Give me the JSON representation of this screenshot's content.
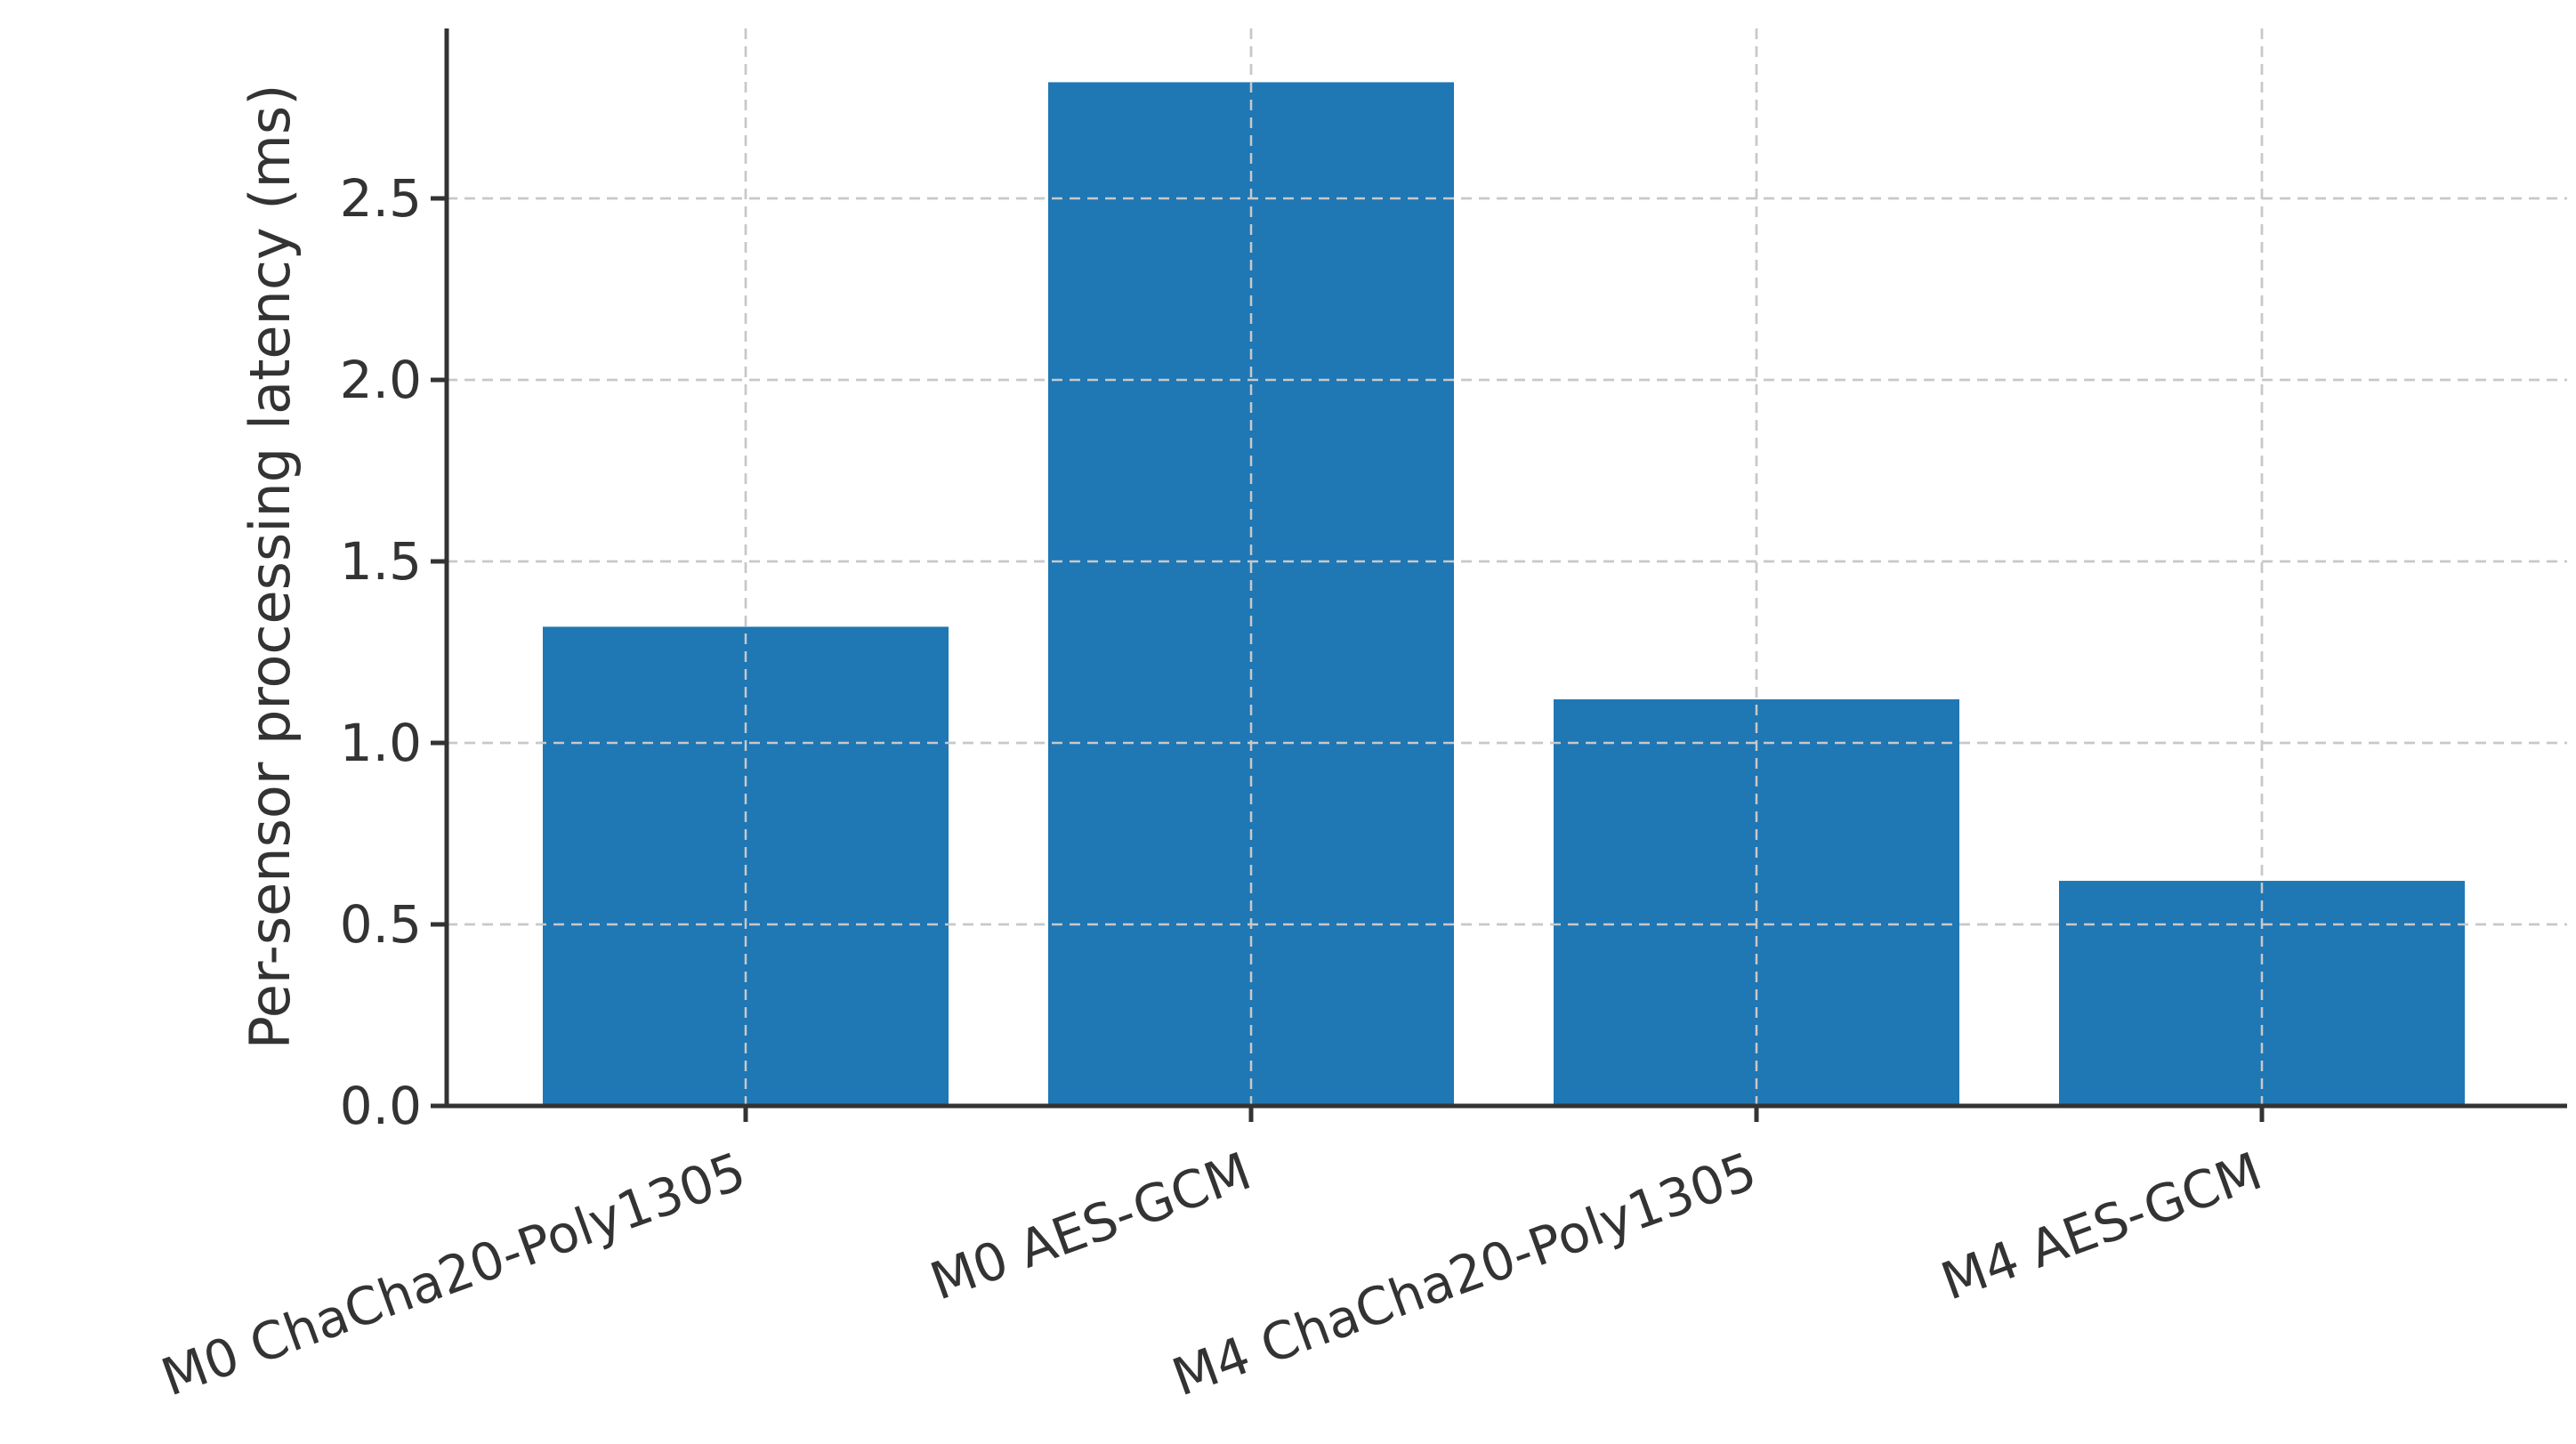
{
  "chart_data": {
    "type": "bar",
    "title": "",
    "xlabel": "",
    "ylabel": "Per-sensor processing latency (ms)",
    "categories": [
      "M0 ChaCha20-Poly1305",
      "M0 AES-GCM",
      "M4 ChaCha20-Poly1305",
      "M4 AES-GCM"
    ],
    "values": [
      1.32,
      2.82,
      1.12,
      0.62
    ],
    "ylim": [
      0,
      2.95
    ],
    "yticks": [
      0.0,
      0.5,
      1.0,
      1.5,
      2.0,
      2.5
    ],
    "ytick_labels": [
      "0.0",
      "0.5",
      "1.0",
      "1.5",
      "2.0",
      "2.5"
    ],
    "grid": true,
    "bar_color": "#1f77b4",
    "x_tick_rotation": "20 degrees counter-clockwise"
  }
}
